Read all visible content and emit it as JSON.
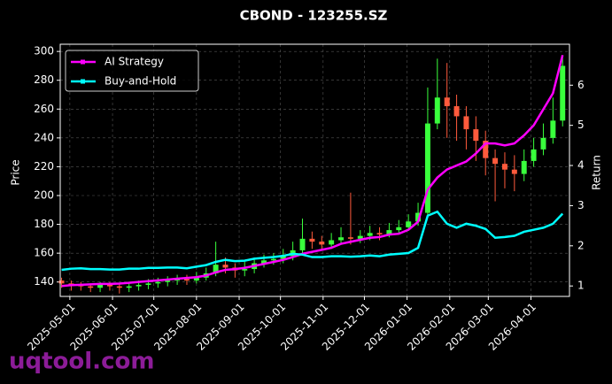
{
  "chart_data": {
    "type": "candlestick",
    "title": "CBOND - 123255.SZ",
    "y_label": "Price",
    "y2_label": "Return",
    "watermark": "uqtool.com",
    "x": [
      "2025-04-25",
      "2025-05-02",
      "2025-05-09",
      "2025-05-16",
      "2025-05-23",
      "2025-05-30",
      "2025-06-06",
      "2025-06-13",
      "2025-06-20",
      "2025-06-27",
      "2025-07-04",
      "2025-07-11",
      "2025-07-18",
      "2025-07-25",
      "2025-08-01",
      "2025-08-08",
      "2025-08-15",
      "2025-08-22",
      "2025-08-29",
      "2025-09-05",
      "2025-09-12",
      "2025-09-19",
      "2025-09-26",
      "2025-10-03",
      "2025-10-10",
      "2025-10-17",
      "2025-10-24",
      "2025-10-31",
      "2025-11-07",
      "2025-11-14",
      "2025-11-21",
      "2025-11-28",
      "2025-12-05",
      "2025-12-12",
      "2025-12-19",
      "2025-12-26",
      "2026-01-02",
      "2026-01-09",
      "2026-01-16",
      "2026-01-23",
      "2026-01-30",
      "2026-02-06",
      "2026-02-13",
      "2026-02-20",
      "2026-02-27",
      "2026-03-06",
      "2026-03-13",
      "2026-03-20",
      "2026-03-27",
      "2026-04-03",
      "2026-04-10",
      "2026-04-17",
      "2026-04-24"
    ],
    "open": [
      141,
      139,
      138,
      137,
      136,
      138,
      137,
      136,
      137,
      138,
      139,
      140,
      141,
      142,
      141,
      143,
      146,
      152,
      150,
      148,
      149,
      153,
      155,
      156,
      158,
      162,
      170,
      168,
      166,
      169,
      171,
      170,
      172,
      174,
      173,
      176,
      178,
      182,
      188,
      250,
      268,
      262,
      255,
      246,
      238,
      226,
      222,
      218,
      215,
      224,
      232,
      240,
      252
    ],
    "high": [
      143,
      141,
      140,
      139,
      140,
      140,
      139,
      140,
      141,
      142,
      143,
      144,
      145,
      145,
      147,
      150,
      168,
      157,
      153,
      154,
      157,
      159,
      160,
      163,
      168,
      184,
      175,
      172,
      174,
      178,
      202,
      176,
      179,
      178,
      181,
      183,
      187,
      195,
      275,
      295,
      292,
      270,
      262,
      255,
      245,
      232,
      230,
      228,
      232,
      240,
      250,
      268,
      297
    ],
    "low": [
      136,
      134,
      134,
      133,
      133,
      134,
      132,
      133,
      134,
      135,
      136,
      137,
      138,
      138,
      139,
      141,
      144,
      146,
      143,
      144,
      146,
      150,
      152,
      153,
      155,
      160,
      163,
      162,
      163,
      166,
      166,
      167,
      169,
      169,
      171,
      173,
      176,
      179,
      186,
      246,
      240,
      238,
      232,
      224,
      214,
      196,
      205,
      203,
      210,
      220,
      228,
      236,
      248
    ],
    "close": [
      139,
      138,
      137,
      136,
      138,
      137,
      136,
      137,
      138,
      139,
      140,
      141,
      142,
      141,
      143,
      146,
      152,
      150,
      148,
      149,
      153,
      155,
      156,
      158,
      162,
      170,
      168,
      166,
      169,
      171,
      170,
      172,
      174,
      173,
      176,
      178,
      182,
      188,
      250,
      268,
      262,
      255,
      246,
      238,
      226,
      222,
      218,
      215,
      224,
      232,
      240,
      252,
      290
    ],
    "up_color": "#39ff3c",
    "down_color": "#ff5a3c",
    "series": [
      {
        "name": "AI Strategy",
        "color": "#ff00ff",
        "axis": "y2",
        "values": [
          1.0,
          1.02,
          1.03,
          1.04,
          1.05,
          1.05,
          1.06,
          1.08,
          1.1,
          1.12,
          1.14,
          1.16,
          1.18,
          1.2,
          1.22,
          1.26,
          1.34,
          1.4,
          1.42,
          1.45,
          1.5,
          1.55,
          1.6,
          1.65,
          1.72,
          1.8,
          1.85,
          1.9,
          1.95,
          2.05,
          2.1,
          2.15,
          2.2,
          2.22,
          2.28,
          2.3,
          2.4,
          2.6,
          3.4,
          3.7,
          3.9,
          4.0,
          4.1,
          4.3,
          4.55,
          4.55,
          4.5,
          4.55,
          4.75,
          5.0,
          5.4,
          5.8,
          6.75
        ]
      },
      {
        "name": "Buy-and-Hold",
        "color": "#00ffff",
        "axis": "y2",
        "values": [
          1.4,
          1.43,
          1.44,
          1.42,
          1.42,
          1.41,
          1.41,
          1.43,
          1.43,
          1.45,
          1.45,
          1.46,
          1.46,
          1.44,
          1.48,
          1.52,
          1.6,
          1.65,
          1.62,
          1.63,
          1.68,
          1.7,
          1.72,
          1.75,
          1.8,
          1.78,
          1.72,
          1.72,
          1.74,
          1.74,
          1.73,
          1.74,
          1.76,
          1.74,
          1.78,
          1.8,
          1.82,
          1.95,
          2.75,
          2.85,
          2.55,
          2.45,
          2.55,
          2.5,
          2.42,
          2.2,
          2.22,
          2.25,
          2.35,
          2.4,
          2.45,
          2.55,
          2.8
        ]
      }
    ],
    "xlim": [
      "2025-04-24",
      "2026-04-29"
    ],
    "xticks": [
      "2025-05-01",
      "2025-06-01",
      "2025-07-01",
      "2025-08-01",
      "2025-09-01",
      "2025-10-01",
      "2025-11-01",
      "2025-12-01",
      "2026-01-01",
      "2026-02-01",
      "2026-03-01",
      "2026-04-01"
    ],
    "ylim": [
      130,
      305
    ],
    "yticks": [
      140,
      160,
      180,
      200,
      220,
      240,
      260,
      280,
      300
    ],
    "y2lim": [
      0.74,
      7.02
    ],
    "y2ticks": [
      1,
      2,
      3,
      4,
      5,
      6
    ],
    "grid": true,
    "legend": "upper left"
  }
}
